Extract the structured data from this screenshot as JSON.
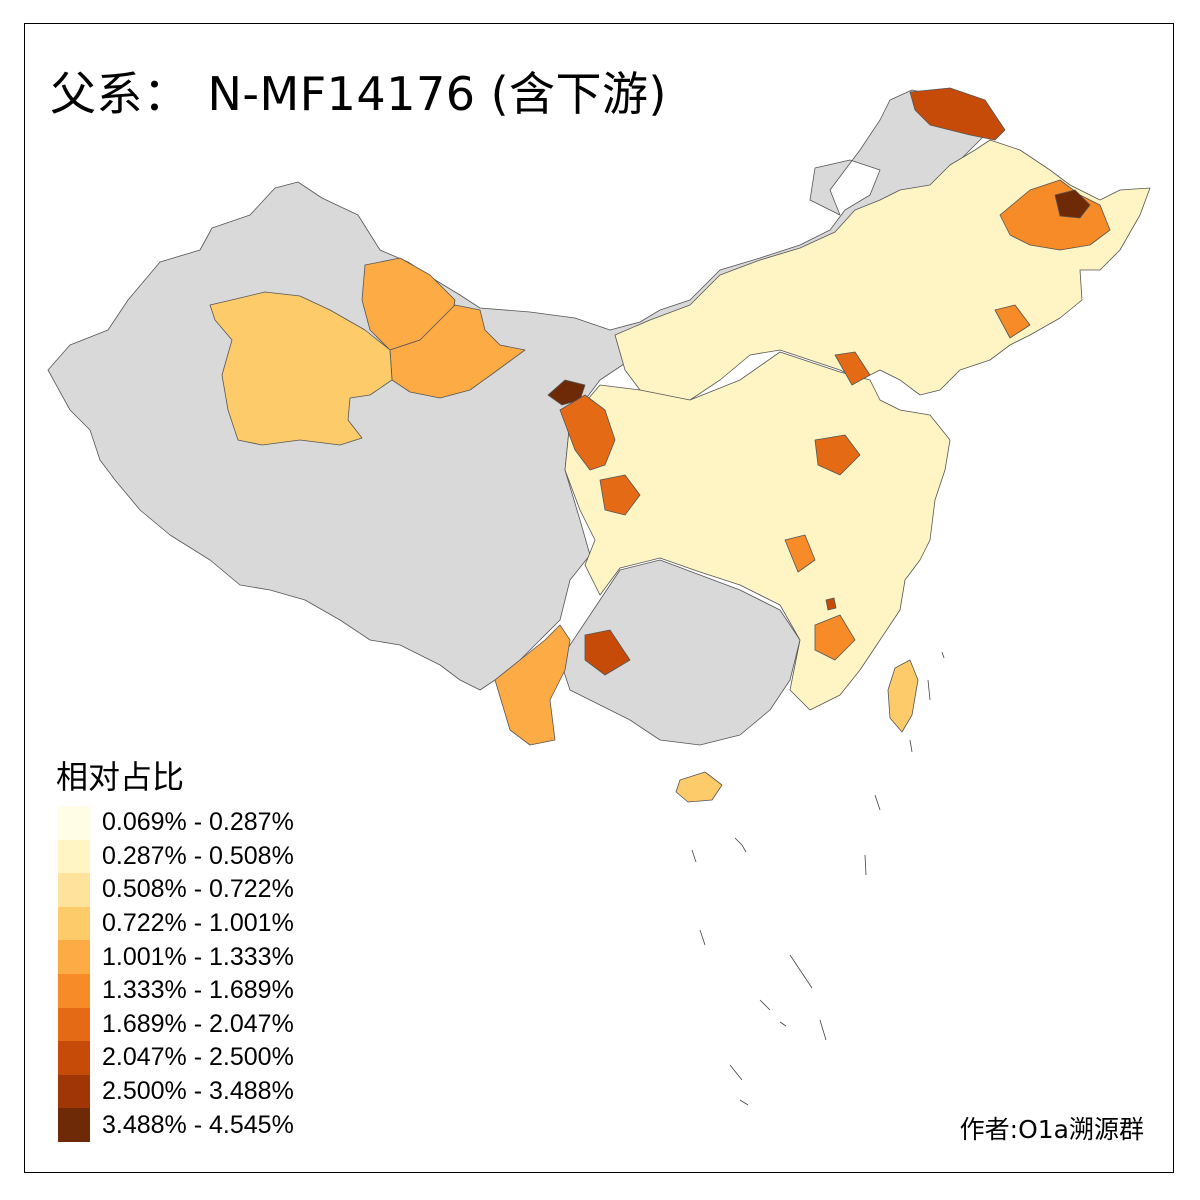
{
  "title": {
    "prefix": "父系：",
    "code": "N-MF14176 (含下游)"
  },
  "legend": {
    "title": "相对占比",
    "classes": [
      {
        "label": "0.069% - 0.287%",
        "color": "#fffde6"
      },
      {
        "label": "0.287% - 0.508%",
        "color": "#fff4c4"
      },
      {
        "label": "0.508% - 0.722%",
        "color": "#ffe39c"
      },
      {
        "label": "0.722% - 1.001%",
        "color": "#fecb6a"
      },
      {
        "label": "1.001% - 1.333%",
        "color": "#fdab45"
      },
      {
        "label": "1.333% - 1.689%",
        "color": "#f78b27"
      },
      {
        "label": "1.689% - 2.047%",
        "color": "#e56a15"
      },
      {
        "label": "2.047% - 2.500%",
        "color": "#c74b08"
      },
      {
        "label": "2.500% - 3.488%",
        "color": "#a03605"
      },
      {
        "label": "3.488% - 4.545%",
        "color": "#6e2a06"
      }
    ]
  },
  "no_data_color": "#d9d9d9",
  "author": "作者:O1a溯源群"
}
